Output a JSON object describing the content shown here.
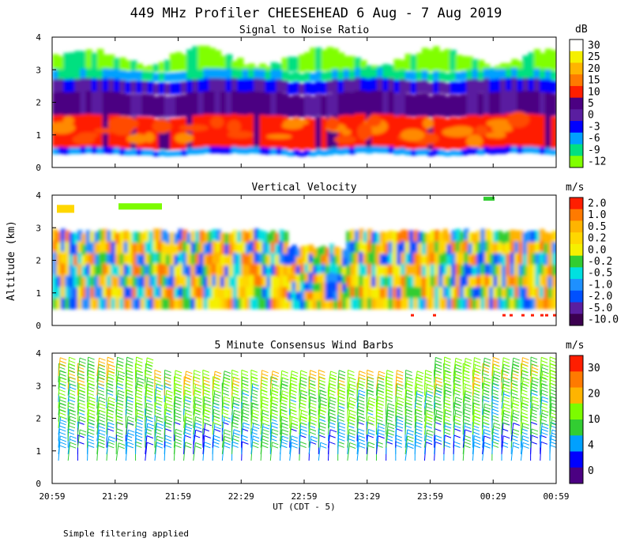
{
  "title": "449 MHz Profiler CHEESEHEAD  6 Aug -  7 Aug 2019",
  "ylabel": "Altitude (km)",
  "xlabel": "UT  (CDT - 5)",
  "footnote": "Simple filtering applied",
  "x_ticks": [
    "20:59",
    "21:29",
    "21:59",
    "22:29",
    "22:59",
    "23:29",
    "23:59",
    "00:29",
    "00:59"
  ],
  "y_ticks": [
    "0",
    "1",
    "2",
    "3",
    "4"
  ],
  "chart_data": [
    {
      "type": "heatmap",
      "title": "Signal to Noise Ratio",
      "unit": "dB",
      "xlabel": "UT  (CDT - 5)",
      "ylabel": "Altitude (km)",
      "x_range": [
        "20:59",
        "00:59"
      ],
      "ylim": [
        0,
        4
      ],
      "colorbar_labels": [
        "30",
        "25",
        "20",
        "15",
        "10",
        "5",
        "0",
        "-3",
        "-6",
        "-9",
        "-12"
      ],
      "colors": [
        "#ffffff",
        "#f5f000",
        "#ffb400",
        "#ff7a00",
        "#ff1e00",
        "#4b0082",
        "#5a1ea0",
        "#0000ff",
        "#00a0ff",
        "#00e080",
        "#80ff00"
      ],
      "layers": [
        {
          "from_km": 0.4,
          "to_km": 0.6,
          "value_db": -3
        },
        {
          "from_km": 0.6,
          "to_km": 1.6,
          "value_db": 12
        },
        {
          "from_km": 1.6,
          "to_km": 2.3,
          "value_db": 6
        },
        {
          "from_km": 2.3,
          "to_km": 2.7,
          "value_db": 0
        },
        {
          "from_km": 2.7,
          "to_km": 3.0,
          "value_db": -6
        },
        {
          "from_km": 3.0,
          "to_km": 3.6,
          "value_db": -10
        }
      ]
    },
    {
      "type": "heatmap",
      "title": "Vertical Velocity",
      "unit": "m/s",
      "xlabel": "UT  (CDT - 5)",
      "ylabel": "Altitude (km)",
      "x_range": [
        "20:59",
        "00:59"
      ],
      "ylim": [
        0,
        4
      ],
      "colorbar_labels": [
        "2.0",
        "1.0",
        "0.5",
        "0.2",
        "0.0",
        "-0.2",
        "-0.5",
        "-1.0",
        "-2.0",
        "-5.0",
        "-10.0"
      ],
      "colors": [
        "#ff1e00",
        "#ff7a00",
        "#ffb400",
        "#ffd700",
        "#f5f000",
        "#32cd32",
        "#00e0e0",
        "#1e90ff",
        "#0050ff",
        "#5a1ea0",
        "#3c0050"
      ],
      "data_top_km": 3.0,
      "data_bottom_km": 0.5
    },
    {
      "type": "barbs",
      "title": "5 Minute Consensus Wind Barbs",
      "unit": "m/s",
      "xlabel": "UT  (CDT - 5)",
      "ylabel": "Altitude (km)",
      "x_range": [
        "20:59",
        "00:59"
      ],
      "ylim": [
        0,
        4
      ],
      "colorbar_labels": [
        "30",
        "20",
        "10",
        "4",
        "0"
      ],
      "colors": [
        "#ff1e00",
        "#ff7a00",
        "#ffb400",
        "#7cfc00",
        "#32cd32",
        "#00a0ff",
        "#0000ff",
        "#4b0082"
      ],
      "typical_speed_ms": 8,
      "max_altitude_km": 3.5
    }
  ]
}
